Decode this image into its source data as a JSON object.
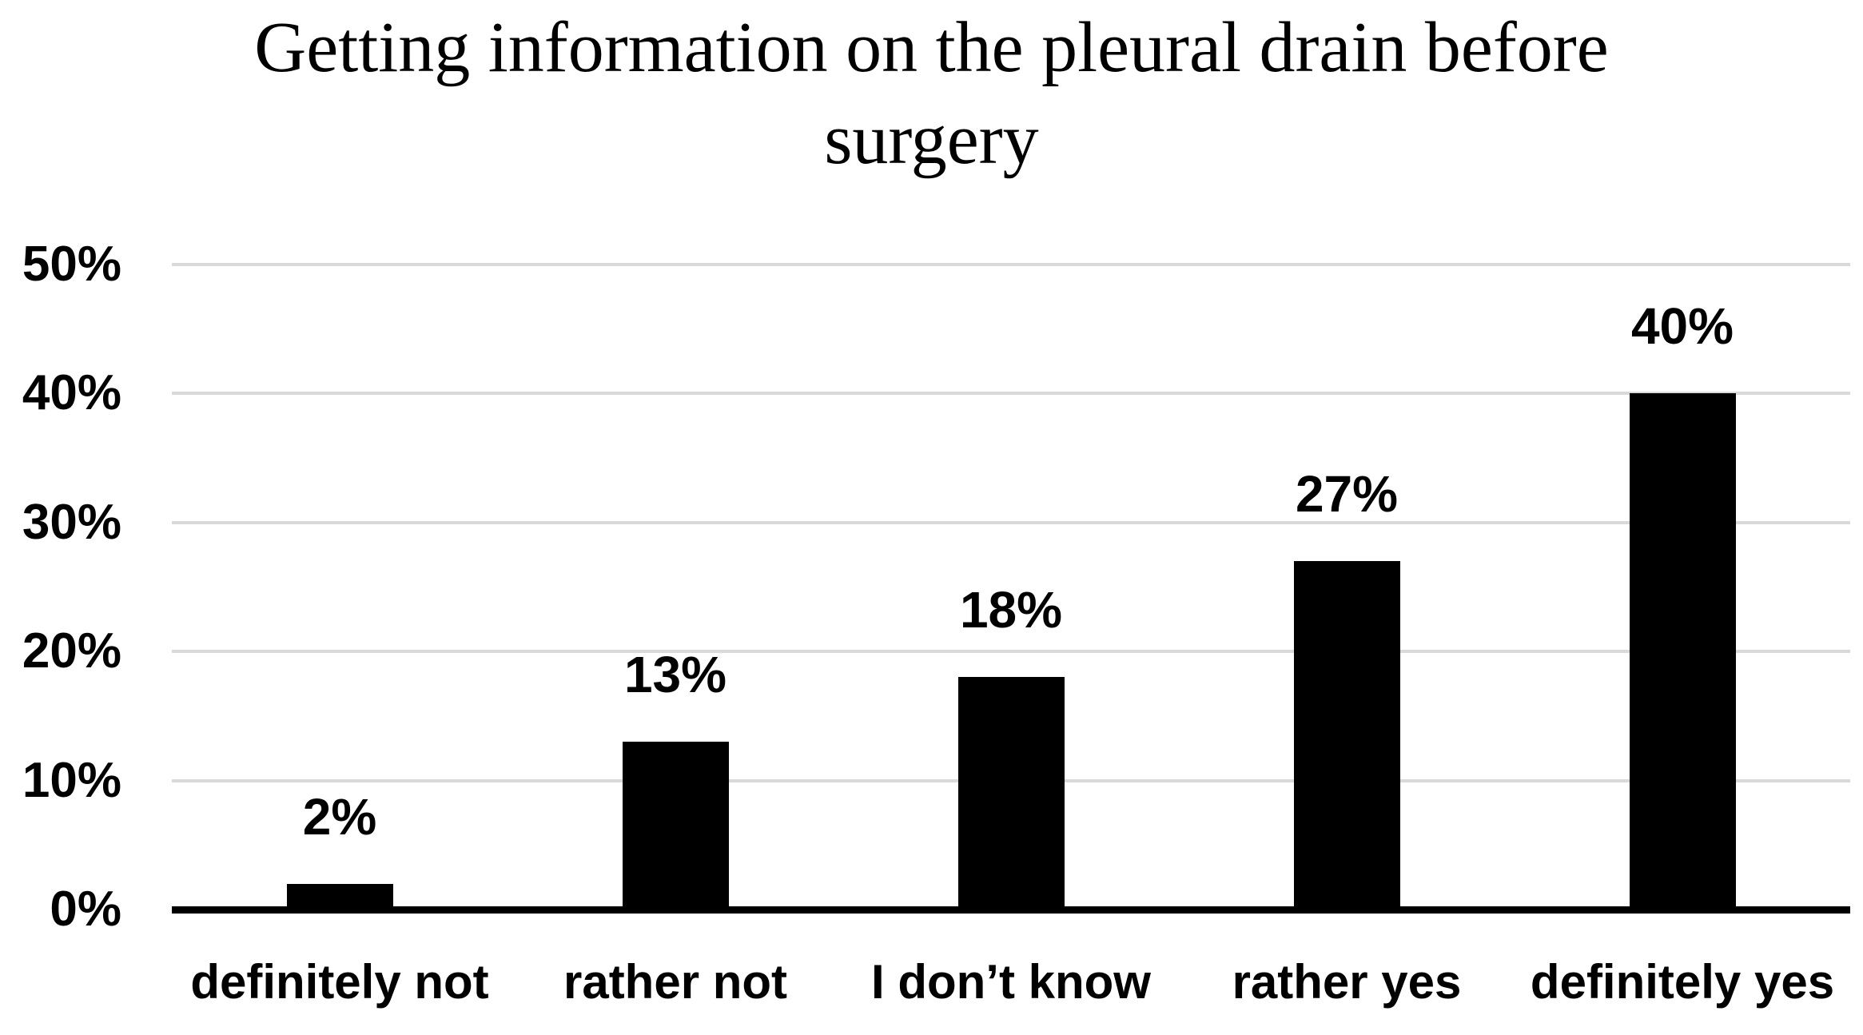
{
  "title": {
    "full": "Getting information on the pleural drain before surgery",
    "line1": "Getting information on the pleural drain before",
    "line2": "surgery"
  },
  "chart_data": {
    "type": "bar",
    "title": "Getting information on the pleural drain before surgery",
    "categories": [
      "definitely not",
      "rather not",
      "I don’t know",
      "rather yes",
      "definitely yes"
    ],
    "values": [
      2,
      13,
      18,
      27,
      40
    ],
    "value_labels": [
      "2%",
      "13%",
      "18%",
      "27%",
      "40%"
    ],
    "yticks": [
      {
        "value": 0,
        "label": "0%"
      },
      {
        "value": 10,
        "label": "10%"
      },
      {
        "value": 20,
        "label": "20%"
      },
      {
        "value": 30,
        "label": "30%"
      },
      {
        "value": 40,
        "label": "40%"
      },
      {
        "value": 50,
        "label": "50%"
      }
    ],
    "ylim": [
      0,
      50
    ],
    "xlabel": "",
    "ylabel": "",
    "grid": "horizontal",
    "legend": "none",
    "colors": {
      "bar": "#000000",
      "gridline": "#d9d9d9",
      "axis_line": "#000000",
      "text": "#000000",
      "background": "#ffffff"
    }
  }
}
